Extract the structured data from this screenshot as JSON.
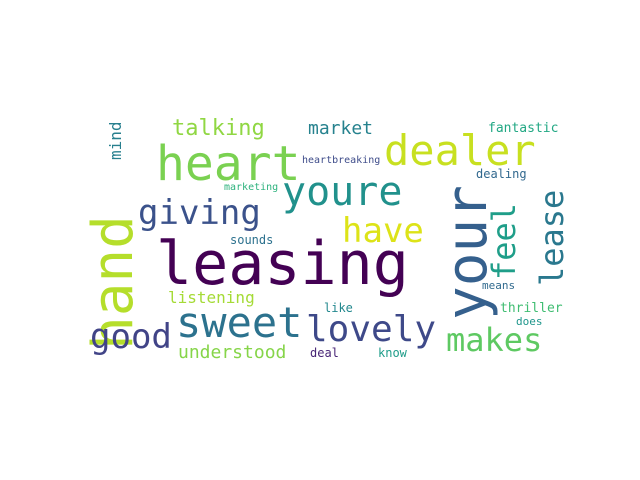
{
  "words": [
    {
      "text": "leasing",
      "color": "#440154"
    },
    {
      "text": "your",
      "color": "#35608d"
    },
    {
      "text": "hand",
      "color": "#b5de2b"
    },
    {
      "text": "heart",
      "color": "#7ad151"
    },
    {
      "text": "youre",
      "color": "#21918c"
    },
    {
      "text": "dealer",
      "color": "#c8e020"
    },
    {
      "text": "sweet",
      "color": "#2c728e"
    },
    {
      "text": "giving",
      "color": "#3b528b"
    },
    {
      "text": "lovely",
      "color": "#3e4989"
    },
    {
      "text": "makes",
      "color": "#5ec962"
    },
    {
      "text": "have",
      "color": "#dde318"
    },
    {
      "text": "good",
      "color": "#414487"
    },
    {
      "text": "feel",
      "color": "#1f9e89"
    },
    {
      "text": "lease",
      "color": "#2a788e"
    },
    {
      "text": "talking",
      "color": "#90d743"
    },
    {
      "text": "market",
      "color": "#26828e"
    },
    {
      "text": "listening",
      "color": "#a5db36"
    },
    {
      "text": "understood",
      "color": "#86d549"
    },
    {
      "text": "mind",
      "color": "#277f8e"
    },
    {
      "text": "fantastic",
      "color": "#22a884"
    },
    {
      "text": "heartbreaking",
      "color": "#3e4c8a"
    },
    {
      "text": "dealing",
      "color": "#31688e"
    },
    {
      "text": "marketing",
      "color": "#2db27d"
    },
    {
      "text": "sounds",
      "color": "#2c718e"
    },
    {
      "text": "means",
      "color": "#306a8e"
    },
    {
      "text": "thriller",
      "color": "#40bd72"
    },
    {
      "text": "like",
      "color": "#23888e"
    },
    {
      "text": "does",
      "color": "#1f968b"
    },
    {
      "text": "deal",
      "color": "#482576"
    },
    {
      "text": "know",
      "color": "#1e9c89"
    }
  ]
}
